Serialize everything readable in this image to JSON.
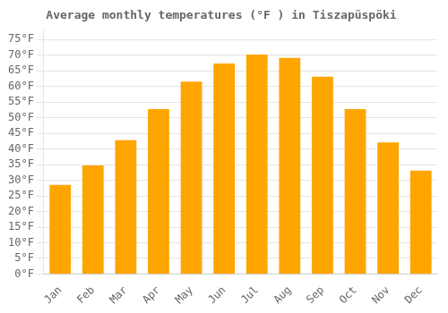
{
  "chart_data": {
    "type": "bar",
    "title": "Average monthly temperatures (°F ) in Tiszapüspöki",
    "categories": [
      "Jan",
      "Feb",
      "Mar",
      "Apr",
      "May",
      "Jun",
      "Jul",
      "Aug",
      "Sep",
      "Oct",
      "Nov",
      "Dec"
    ],
    "values": [
      28.5,
      34.7,
      42.8,
      52.7,
      61.5,
      67.3,
      70.2,
      69.1,
      63.1,
      52.7,
      42.1,
      33.1
    ],
    "color": "#FFA500",
    "ylim": [
      0,
      78
    ],
    "yticks": [
      {
        "value": 0,
        "label": "0°F"
      },
      {
        "value": 5,
        "label": "5°F"
      },
      {
        "value": 10,
        "label": "10°F"
      },
      {
        "value": 15,
        "label": "15°F"
      },
      {
        "value": 20,
        "label": "20°F"
      },
      {
        "value": 25,
        "label": "25°F"
      },
      {
        "value": 30,
        "label": "30°F"
      },
      {
        "value": 35,
        "label": "35°F"
      },
      {
        "value": 40,
        "label": "40°F"
      },
      {
        "value": 45,
        "label": "45°F"
      },
      {
        "value": 50,
        "label": "50°F"
      },
      {
        "value": 55,
        "label": "55°F"
      },
      {
        "value": 60,
        "label": "60°F"
      },
      {
        "value": 65,
        "label": "65°F"
      },
      {
        "value": 70,
        "label": "70°F"
      },
      {
        "value": 75,
        "label": "75°F"
      }
    ],
    "grid": true
  }
}
